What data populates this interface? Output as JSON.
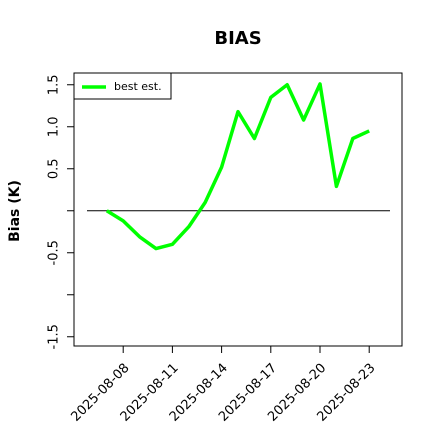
{
  "chart_data": {
    "type": "line",
    "title": "BIAS",
    "ylabel": "Bias (K)",
    "x": [
      "2025-08-07",
      "2025-08-08",
      "2025-08-09",
      "2025-08-10",
      "2025-08-11",
      "2025-08-12",
      "2025-08-13",
      "2025-08-14",
      "2025-08-15",
      "2025-08-16",
      "2025-08-17",
      "2025-08-18",
      "2025-08-19",
      "2025-08-20",
      "2025-08-21",
      "2025-08-22",
      "2025-08-23"
    ],
    "series": [
      {
        "name": "best est.",
        "color": "#00ff00",
        "values": [
          0,
          -0.12,
          -0.31,
          -0.45,
          -0.4,
          -0.19,
          0.1,
          0.52,
          1.18,
          0.86,
          1.35,
          1.5,
          1.08,
          1.51,
          0.29,
          0.86,
          0.95
        ]
      }
    ],
    "xlim": [
      "2025-08-05",
      "2025-08-25"
    ],
    "xticks": [
      "2025-08-08",
      "2025-08-11",
      "2025-08-14",
      "2025-08-17",
      "2025-08-20",
      "2025-08-23"
    ],
    "ylim": [
      -1.61,
      1.64
    ],
    "yticks": [
      -1.5,
      -0.5,
      0.5,
      {
        "value": 1,
        "label": "1.0"
      },
      1.5
    ],
    "yminorticks": [
      -1,
      0
    ],
    "hline": 0,
    "legend": "top-left"
  }
}
